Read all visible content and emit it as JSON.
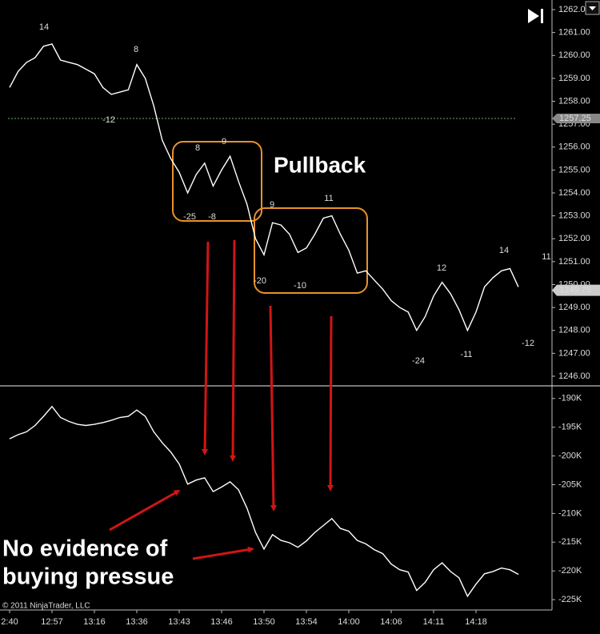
{
  "chart_data": [
    {
      "type": "line",
      "color": "#ffffff",
      "values": [
        1258.6,
        1259.3,
        1259.7,
        1259.9,
        1260.4,
        1260.5,
        1259.8,
        1259.7,
        1259.6,
        1259.4,
        1259.2,
        1258.6,
        1258.3,
        1258.4,
        1258.5,
        1259.6,
        1259.0,
        1257.8,
        1256.3,
        1255.5,
        1254.9,
        1254.0,
        1254.8,
        1255.3,
        1254.3,
        1255.0,
        1255.6,
        1254.5,
        1253.5,
        1252.0,
        1251.3,
        1252.7,
        1252.6,
        1252.2,
        1251.4,
        1251.6,
        1252.2,
        1252.9,
        1253.0,
        1252.2,
        1251.5,
        1250.5,
        1250.6,
        1250.2,
        1249.8,
        1249.3,
        1249.0,
        1248.8,
        1248.0,
        1248.6,
        1249.5,
        1250.1,
        1249.6,
        1248.9,
        1248.0,
        1248.8,
        1249.9,
        1250.3,
        1250.6,
        1250.7,
        1249.9
      ],
      "ylim": [
        1245.58,
        1262.42
      ],
      "yticks": [
        {
          "value": 1246,
          "label": "1246.00"
        },
        {
          "value": 1247,
          "label": "1247.00"
        },
        {
          "value": 1248,
          "label": "1248.00"
        },
        {
          "value": 1249,
          "label": "1249.00"
        },
        {
          "value": 1250,
          "label": "1250.00"
        },
        {
          "value": 1251,
          "label": "1251.00"
        },
        {
          "value": 1252,
          "label": "1252.00"
        },
        {
          "value": 1253,
          "label": "1253.00"
        },
        {
          "value": 1254,
          "label": "1254.00"
        },
        {
          "value": 1255,
          "label": "1255.00"
        },
        {
          "value": 1256,
          "label": "1256.00"
        },
        {
          "value": 1257,
          "label": "1257.00"
        },
        {
          "value": 1258,
          "label": "1258.00"
        },
        {
          "value": 1259,
          "label": "1259.00"
        },
        {
          "value": 1260,
          "label": "1260.00"
        },
        {
          "value": 1261,
          "label": "1261.00"
        },
        {
          "value": 1262,
          "label": "1262.0"
        }
      ],
      "reference_line": {
        "value": 1257.25,
        "color": "#5fae5f"
      },
      "last_price": 1249.75,
      "swing_labels": [
        14,
        8,
        -12,
        8,
        9,
        -25,
        -8,
        9,
        11,
        -20,
        -10,
        12,
        14,
        11,
        -24,
        -11,
        -12
      ],
      "swing_color": "#9fd3d3"
    },
    {
      "type": "line",
      "color": "#ffffff",
      "categories": [
        "2:40",
        null,
        null,
        null,
        null,
        "12:57",
        null,
        null,
        null,
        null,
        "13:16",
        null,
        null,
        null,
        null,
        "13:36",
        null,
        null,
        null,
        null,
        "13:43",
        null,
        null,
        null,
        null,
        "13:46",
        null,
        null,
        null,
        null,
        "13:50",
        null,
        null,
        null,
        null,
        "13:54",
        null,
        null,
        null,
        null,
        "14:00",
        null,
        null,
        null,
        null,
        "14:06",
        null,
        null,
        null,
        null,
        "14:11",
        null,
        null,
        null,
        null,
        "14:18",
        null,
        null,
        null,
        null,
        null
      ],
      "values": [
        -197000,
        -196300,
        -195800,
        -194700,
        -193100,
        -191400,
        -193300,
        -194000,
        -194500,
        -194700,
        -194500,
        -194200,
        -193800,
        -193300,
        -193100,
        -192000,
        -193100,
        -195800,
        -197700,
        -199300,
        -201400,
        -204900,
        -204200,
        -203800,
        -206200,
        -205400,
        -204500,
        -205900,
        -209100,
        -213300,
        -216200,
        -213700,
        -214700,
        -215100,
        -215900,
        -214800,
        -213300,
        -212100,
        -210900,
        -212600,
        -213100,
        -214700,
        -215300,
        -216300,
        -217000,
        -218800,
        -219800,
        -220200,
        -223400,
        -222000,
        -219800,
        -218600,
        -220100,
        -221200,
        -224400,
        -222300,
        -220500,
        -220100,
        -219500,
        -219800,
        -220600
      ],
      "ylim": [
        -226800,
        -187800
      ],
      "yticks": [
        {
          "value": -190000,
          "label": "-190K"
        },
        {
          "value": -195000,
          "label": "-195K"
        },
        {
          "value": -200000,
          "label": "-200K"
        },
        {
          "value": -205000,
          "label": "-205K"
        },
        {
          "value": -210000,
          "label": "-210K"
        },
        {
          "value": -215000,
          "label": "-215K"
        },
        {
          "value": -220000,
          "label": "-220K"
        },
        {
          "value": -225000,
          "label": "-225K"
        }
      ]
    }
  ],
  "annotations": {
    "pullback": "Pullback",
    "note_line1": "No evidence of",
    "note_line2": "buying pressue"
  },
  "copyright": "© 2011 NinjaTrader, LLC"
}
